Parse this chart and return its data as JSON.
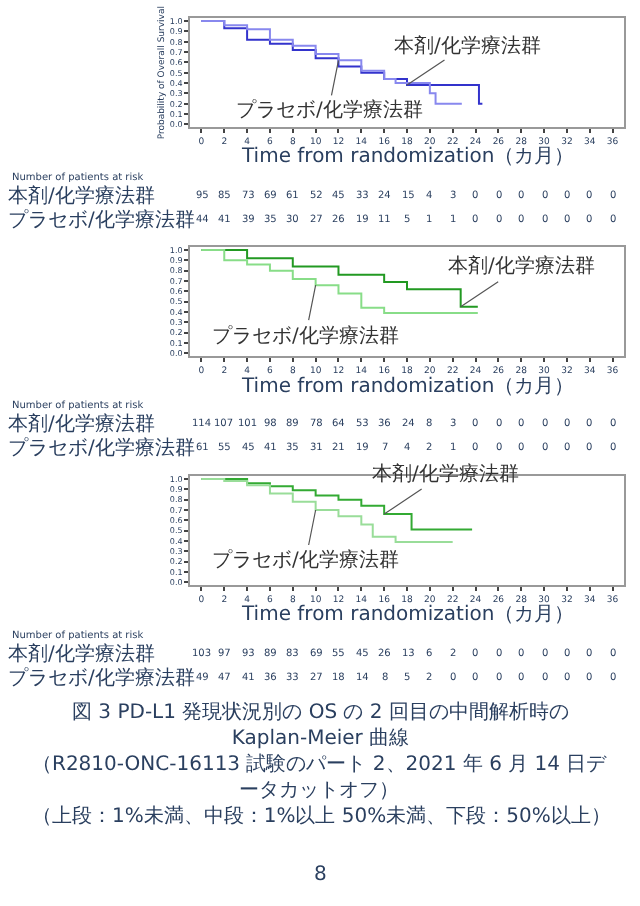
{
  "chart_data": [
    {
      "type": "step",
      "ylabel": "Probability of Overall Survival",
      "xlabel": "Time from randomization（カ月）",
      "xlim": [
        -1,
        37
      ],
      "xticks": [
        0,
        2,
        4,
        6,
        8,
        10,
        12,
        14,
        16,
        18,
        20,
        22,
        24,
        26,
        28,
        30,
        32,
        34,
        36
      ],
      "ylim": [
        -0.03,
        1.03
      ],
      "yticks": [
        {
          "value": 0,
          "label": "0.0"
        },
        {
          "value": 0.1,
          "label": "0.1"
        },
        {
          "value": 0.2,
          "label": "0.2"
        },
        {
          "value": 0.3,
          "label": "0.3"
        },
        {
          "value": 0.4,
          "label": "0.4"
        },
        {
          "value": 0.5,
          "label": "0.5"
        },
        {
          "value": 0.6,
          "label": "0.6"
        },
        {
          "value": 0.7,
          "label": "0.7"
        },
        {
          "value": 0.8,
          "label": "0.8"
        },
        {
          "value": 0.9,
          "label": "0.9"
        },
        {
          "value": 1,
          "label": "1.0"
        }
      ],
      "legend": false,
      "series": [
        {
          "name": "本剤/化学療法群",
          "color": "#3333cc",
          "x": [
            0,
            2,
            4,
            6,
            8,
            10,
            12,
            14,
            16,
            18,
            24.3,
            24.6
          ],
          "values": [
            1.0,
            0.93,
            0.82,
            0.78,
            0.72,
            0.64,
            0.56,
            0.5,
            0.44,
            0.38,
            0.2,
            0.2
          ]
        },
        {
          "name": "プラセボ/化学療法群",
          "color": "#8888ee",
          "x": [
            0,
            2,
            4,
            6,
            8,
            10,
            12,
            14,
            16,
            17,
            20,
            20.5,
            22.8
          ],
          "values": [
            1.0,
            0.96,
            0.92,
            0.82,
            0.76,
            0.68,
            0.62,
            0.52,
            0.44,
            0.4,
            0.3,
            0.2,
            0.2
          ]
        }
      ],
      "annotations": [
        "Number of patients at risk",
        "本剤/化学療法群",
        "95 85 73 69 61 52 45 33 24 15 4 3 0 0 0 0 0 0 0",
        "プラセボ/化学療法群",
        "44 41 39 35 30 27 26 19 11 5 1 1 0 0 0 0 0 0 0"
      ]
    },
    {
      "type": "step",
      "xlabel": "Time from randomization（カ月）",
      "xlim": [
        -1,
        37
      ],
      "xticks": [
        0,
        2,
        4,
        6,
        8,
        10,
        12,
        14,
        16,
        18,
        20,
        22,
        24,
        26,
        28,
        30,
        32,
        34,
        36
      ],
      "ylim": [
        -0.03,
        1.03
      ],
      "yticks": [
        {
          "value": 0,
          "label": "0.0"
        },
        {
          "value": 0.1,
          "label": "0.1"
        },
        {
          "value": 0.2,
          "label": "0.2"
        },
        {
          "value": 0.3,
          "label": "0.3"
        },
        {
          "value": 0.4,
          "label": "0.4"
        },
        {
          "value": 0.5,
          "label": "0.5"
        },
        {
          "value": 0.6,
          "label": "0.6"
        },
        {
          "value": 0.7,
          "label": "0.7"
        },
        {
          "value": 0.8,
          "label": "0.8"
        },
        {
          "value": 0.9,
          "label": "0.9"
        },
        {
          "value": 1,
          "label": "1.0"
        }
      ],
      "legend": false,
      "series": [
        {
          "name": "本剤/化学療法群",
          "color": "#229922",
          "x": [
            0,
            4,
            8,
            12,
            16,
            18,
            22.7,
            24.2
          ],
          "values": [
            1.0,
            0.92,
            0.84,
            0.76,
            0.69,
            0.62,
            0.45,
            0.45
          ]
        },
        {
          "name": "プラセボ/化学療法群",
          "color": "#88dd88",
          "x": [
            0,
            2,
            4,
            6,
            8,
            10,
            12,
            14,
            16,
            24.2
          ],
          "values": [
            1.0,
            0.9,
            0.86,
            0.8,
            0.72,
            0.66,
            0.58,
            0.44,
            0.39,
            0.39
          ]
        }
      ],
      "annotations": [
        "Number of patients at risk",
        "本剤/化学療法群",
        "114 107 101 98 89 78 64 53 36 24 8 3 0 0 0 0 0 0 0",
        "プラセボ/化学療法群",
        "61 55 45 41 35 31 21 19 7 4 2 1 0 0 0 0 0 0 0"
      ]
    },
    {
      "type": "step",
      "xlabel": "Time from randomization（カ月）",
      "xlim": [
        -1,
        37
      ],
      "xticks": [
        0,
        2,
        4,
        6,
        8,
        10,
        12,
        14,
        16,
        18,
        20,
        22,
        24,
        26,
        28,
        30,
        32,
        34,
        36
      ],
      "ylim": [
        -0.03,
        1.03
      ],
      "yticks": [
        {
          "value": 0,
          "label": "0.0"
        },
        {
          "value": 0.1,
          "label": "0.1"
        },
        {
          "value": 0.2,
          "label": "0.2"
        },
        {
          "value": 0.3,
          "label": "0.3"
        },
        {
          "value": 0.4,
          "label": "0.4"
        },
        {
          "value": 0.5,
          "label": "0.5"
        },
        {
          "value": 0.6,
          "label": "0.6"
        },
        {
          "value": 0.7,
          "label": "0.7"
        },
        {
          "value": 0.8,
          "label": "0.8"
        },
        {
          "value": 0.9,
          "label": "0.9"
        },
        {
          "value": 1,
          "label": "1.0"
        }
      ],
      "legend": false,
      "series": [
        {
          "name": "本剤/化学療法群",
          "color": "#33aa33",
          "x": [
            0,
            4,
            6,
            8,
            10,
            12,
            14,
            16,
            18.4,
            23.7
          ],
          "values": [
            1.0,
            0.96,
            0.93,
            0.89,
            0.84,
            0.8,
            0.74,
            0.66,
            0.51,
            0.51
          ]
        },
        {
          "name": "プラセボ/化学療法群",
          "color": "#99dd99",
          "x": [
            0,
            2,
            4,
            6,
            8,
            10,
            12,
            14,
            15,
            17,
            22
          ],
          "values": [
            1.0,
            0.98,
            0.94,
            0.86,
            0.78,
            0.7,
            0.64,
            0.56,
            0.44,
            0.39,
            0.39
          ]
        }
      ],
      "annotations": [
        "Number of patients at risk",
        "本剤/化学療法群",
        "103 97 93 89 83 69 55 45 26 13 6 2 0 0 0 0 0 0 0",
        "プラセボ/化学療法群",
        "49 47 41 36 33 27 18 14 8 5 2 0 0 0 0 0 0 0 0",
        "図 3 PD-L1 発現状況別の OS の 2 回目の中間解析時の Kaplan-Meier 曲線",
        "（R2810-ONC-16113 試験のパート 2、2021 年 6 月 14 日データカットオフ）",
        "（上段：1%未満、中段：1%以上 50%未満、下段：50%以上）",
        "8"
      ]
    }
  ]
}
